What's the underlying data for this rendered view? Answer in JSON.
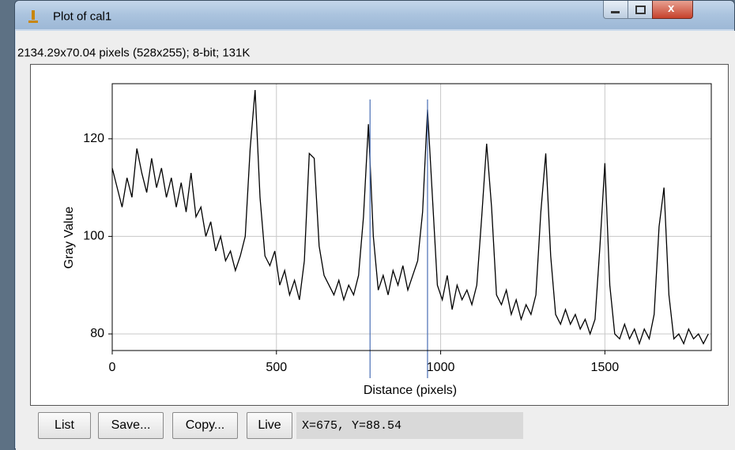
{
  "window": {
    "title": "Plot of cal1",
    "info": "2134.29x70.04 pixels (528x255); 8-bit; 131K",
    "buttons": [
      "List",
      "Save...",
      "Copy...",
      "Live"
    ],
    "status": "X=675, Y=88.54"
  },
  "chart_data": {
    "type": "line",
    "xlabel": "Distance (pixels)",
    "ylabel": "Gray Value",
    "x": [
      0,
      15,
      30,
      45,
      60,
      75,
      90,
      105,
      120,
      135,
      150,
      165,
      180,
      195,
      210,
      225,
      240,
      255,
      270,
      285,
      300,
      315,
      330,
      345,
      360,
      375,
      390,
      405,
      420,
      435,
      450,
      465,
      480,
      495,
      510,
      525,
      540,
      555,
      570,
      585,
      600,
      615,
      630,
      645,
      660,
      675,
      690,
      705,
      720,
      735,
      750,
      765,
      780,
      795,
      810,
      825,
      840,
      855,
      870,
      885,
      900,
      915,
      930,
      945,
      960,
      975,
      990,
      1005,
      1020,
      1035,
      1050,
      1065,
      1080,
      1095,
      1110,
      1125,
      1140,
      1155,
      1170,
      1185,
      1200,
      1215,
      1230,
      1245,
      1260,
      1275,
      1290,
      1305,
      1320,
      1335,
      1350,
      1365,
      1380,
      1395,
      1410,
      1425,
      1440,
      1455,
      1470,
      1485,
      1500,
      1515,
      1530,
      1545,
      1560,
      1575,
      1590,
      1605,
      1620,
      1635,
      1650,
      1665,
      1680,
      1695,
      1710,
      1725,
      1740,
      1755,
      1770,
      1785,
      1800,
      1815
    ],
    "values": [
      114,
      110,
      106,
      112,
      108,
      118,
      113,
      109,
      116,
      110,
      114,
      108,
      112,
      106,
      111,
      105,
      113,
      104,
      106,
      100,
      103,
      97,
      100,
      95,
      97,
      93,
      96,
      100,
      118,
      130,
      108,
      96,
      94,
      97,
      90,
      93,
      88,
      91,
      87,
      95,
      117,
      116,
      98,
      92,
      90,
      88,
      91,
      87,
      90,
      88,
      92,
      104,
      123,
      100,
      89,
      92,
      88,
      93,
      90,
      94,
      89,
      92,
      95,
      105,
      126,
      108,
      90,
      87,
      92,
      85,
      90,
      87,
      89,
      86,
      90,
      104,
      119,
      106,
      88,
      86,
      89,
      84,
      87,
      83,
      86,
      84,
      88,
      105,
      117,
      96,
      84,
      82,
      85,
      82,
      84,
      81,
      83,
      80,
      83,
      98,
      115,
      90,
      80,
      79,
      82,
      79,
      81,
      78,
      81,
      79,
      84,
      102,
      110,
      88,
      79,
      80,
      78,
      81,
      79,
      80,
      78,
      80
    ],
    "color": "#000000",
    "xlim": [
      0,
      1824
    ],
    "ylim": [
      76.6,
      131.3
    ],
    "xticks": [
      0,
      500,
      1000,
      1500
    ],
    "yticks": [
      80,
      100,
      120
    ],
    "grid": true,
    "markers": [
      785,
      960
    ],
    "marker_color": "#4a6fb5"
  }
}
